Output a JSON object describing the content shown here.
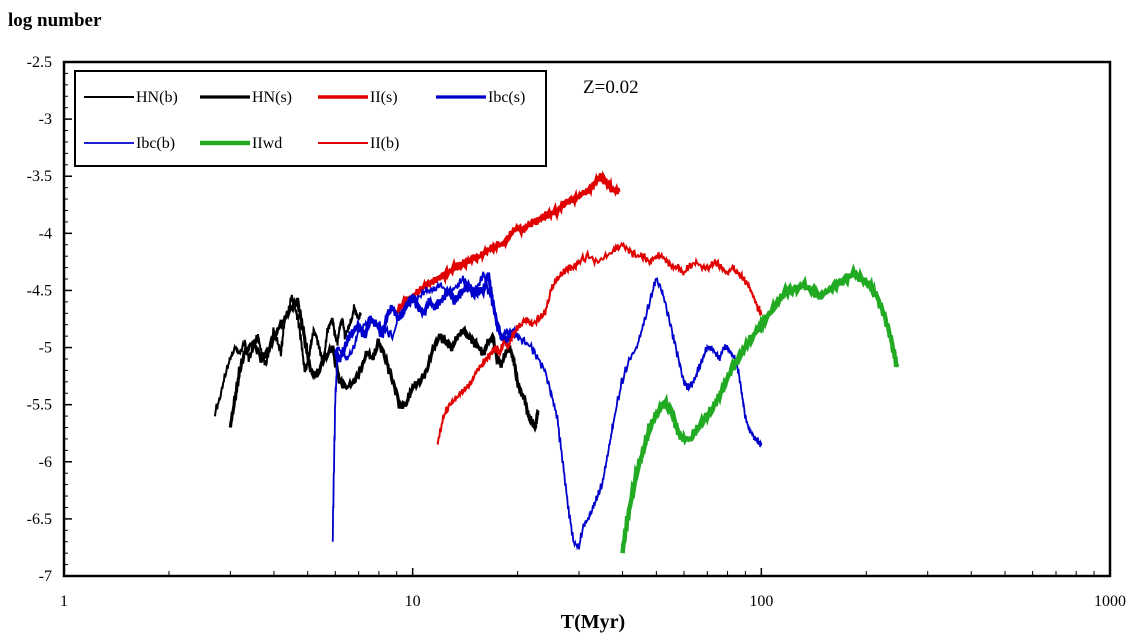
{
  "chart_data": {
    "type": "line",
    "ylabel": "log number",
    "xlabel": "T(Myr)",
    "xscale": "log",
    "xlim": [
      1,
      1000
    ],
    "ylim": [
      -7,
      -2.5
    ],
    "x_ticks": [
      1,
      10,
      100,
      1000
    ],
    "x_tick_labels": [
      "1",
      "10",
      "100",
      "1000"
    ],
    "y_ticks": [
      -2.5,
      -3,
      -3.5,
      -4,
      -4.5,
      -5,
      -5.5,
      -6,
      -6.5,
      -7
    ],
    "y_tick_labels": [
      "-2.5",
      "-3",
      "-3.5",
      "-4",
      "-4.5",
      "-5",
      "-5.5",
      "-6",
      "-6.5",
      "-7"
    ],
    "annotation": "Z=0.02",
    "legend_position": "top-left",
    "grid": false,
    "series": [
      {
        "name": "HN(b)",
        "color": "#000000",
        "width": 2,
        "x": [
          2.7,
          2.8,
          2.9,
          3.0,
          3.1,
          3.2,
          3.3,
          3.4,
          3.5,
          3.6,
          3.7,
          3.8,
          3.9,
          4.0,
          4.1,
          4.2,
          4.3,
          4.4,
          4.5,
          4.6,
          4.7,
          4.8,
          4.9,
          5.0,
          5.1,
          5.2,
          5.3,
          5.4,
          5.5,
          5.6,
          5.7,
          5.8,
          5.9,
          6.0,
          6.1,
          6.2,
          6.3,
          6.4,
          6.5,
          6.6,
          6.7,
          6.8,
          6.9,
          7.0,
          7.1
        ],
        "y": [
          -5.6,
          -5.45,
          -5.25,
          -5.1,
          -5.0,
          -5.05,
          -4.95,
          -5.1,
          -5.0,
          -4.9,
          -5.05,
          -5.15,
          -5.0,
          -4.85,
          -4.95,
          -5.05,
          -4.75,
          -4.7,
          -4.55,
          -4.65,
          -4.75,
          -4.95,
          -5.2,
          -5.15,
          -5.0,
          -4.85,
          -4.9,
          -5.0,
          -5.1,
          -5.05,
          -4.85,
          -4.8,
          -4.75,
          -4.9,
          -4.95,
          -4.8,
          -4.75,
          -4.9,
          -4.85,
          -4.8,
          -4.75,
          -4.65,
          -4.7,
          -4.75,
          -4.7
        ]
      },
      {
        "name": "HN(s)",
        "color": "#000000",
        "width": 3.2,
        "x": [
          3.0,
          3.1,
          3.2,
          3.3,
          3.5,
          3.7,
          3.9,
          4.1,
          4.3,
          4.5,
          4.7,
          4.9,
          5.1,
          5.3,
          5.6,
          5.9,
          6.2,
          6.5,
          6.8,
          7.1,
          7.4,
          7.7,
          8.0,
          8.4,
          8.8,
          9.2,
          9.6,
          10.0,
          10.5,
          11.0,
          11.5,
          12.0,
          12.5,
          13.0,
          13.5,
          14.0,
          14.5,
          15.0,
          15.5,
          16.0,
          16.5,
          17.0,
          17.5,
          18.0,
          18.5,
          19.0,
          19.5,
          20.0,
          20.5,
          21.0,
          21.5,
          22.0,
          22.5,
          22.9
        ],
        "y": [
          -5.7,
          -5.45,
          -5.2,
          -5.05,
          -4.95,
          -5.1,
          -5.0,
          -4.85,
          -4.75,
          -4.65,
          -4.6,
          -4.9,
          -5.2,
          -5.25,
          -5.1,
          -5.0,
          -5.3,
          -5.35,
          -5.3,
          -5.2,
          -5.05,
          -5.1,
          -4.95,
          -5.1,
          -5.3,
          -5.5,
          -5.5,
          -5.35,
          -5.3,
          -5.2,
          -5.0,
          -4.9,
          -4.95,
          -5.0,
          -4.9,
          -4.85,
          -4.9,
          -4.95,
          -5.0,
          -5.05,
          -4.95,
          -4.9,
          -5.1,
          -5.15,
          -5.05,
          -5.0,
          -5.1,
          -5.3,
          -5.4,
          -5.45,
          -5.6,
          -5.65,
          -5.7,
          -5.55
        ]
      },
      {
        "name": "II(s)",
        "color": "#e00000",
        "width": 3.5,
        "x": [
          9.0,
          9.5,
          10.0,
          10.5,
          11.0,
          11.5,
          12.0,
          12.6,
          13.2,
          13.8,
          14.4,
          15.0,
          15.7,
          16.4,
          17.1,
          17.8,
          18.5,
          19.2,
          20.0,
          20.8,
          21.6,
          22.4,
          23.2,
          24.0,
          25.0,
          26.0,
          27.0,
          28.0,
          29.0,
          30.0,
          31.0,
          32.0,
          33.0,
          34.0,
          35.0,
          36.0,
          37.0,
          38.0,
          39.0
        ],
        "y": [
          -4.7,
          -4.6,
          -4.55,
          -4.5,
          -4.45,
          -4.42,
          -4.38,
          -4.35,
          -4.3,
          -4.28,
          -4.25,
          -4.22,
          -4.2,
          -4.15,
          -4.12,
          -4.1,
          -4.08,
          -4.0,
          -3.95,
          -3.98,
          -3.92,
          -3.9,
          -3.88,
          -3.85,
          -3.82,
          -3.8,
          -3.75,
          -3.72,
          -3.7,
          -3.68,
          -3.65,
          -3.62,
          -3.58,
          -3.52,
          -3.5,
          -3.55,
          -3.6,
          -3.62,
          -3.63
        ]
      },
      {
        "name": "Ibc(s)",
        "color": "#0000cc",
        "width": 3.2,
        "x": [
          6.0,
          6.2,
          6.4,
          6.6,
          6.8,
          7.0,
          7.3,
          7.6,
          7.9,
          8.2,
          8.5,
          8.8,
          9.1,
          9.4,
          9.7,
          10.0,
          10.4,
          10.8,
          11.2,
          11.6,
          12.0,
          12.4,
          12.8,
          13.2,
          13.6,
          14.0,
          14.5,
          15.0,
          15.5,
          16.0,
          16.5,
          17.0,
          17.5,
          18.0,
          18.5,
          19.0,
          19.5,
          20.0
        ],
        "y": [
          -5.05,
          -5.1,
          -5.0,
          -4.9,
          -4.85,
          -4.8,
          -4.9,
          -4.75,
          -4.8,
          -4.9,
          -4.7,
          -4.65,
          -4.75,
          -4.7,
          -4.6,
          -4.55,
          -4.65,
          -4.7,
          -4.6,
          -4.65,
          -4.6,
          -4.55,
          -4.5,
          -4.6,
          -4.55,
          -4.5,
          -4.45,
          -4.55,
          -4.5,
          -4.5,
          -4.35,
          -4.6,
          -4.8,
          -4.9,
          -4.95,
          -4.9,
          -4.85,
          -4.9
        ]
      },
      {
        "name": "Ibc(b)",
        "color": "#0000cc",
        "width": 1.8,
        "x": [
          5.9,
          6.0,
          6.1,
          6.3,
          6.5,
          6.8,
          7.0,
          7.3,
          7.6,
          8.0,
          8.4,
          8.8,
          9.2,
          9.6,
          10.0,
          10.5,
          11.0,
          11.5,
          12.0,
          12.5,
          13.0,
          13.5,
          14.0,
          14.5,
          15.0,
          15.5,
          16.0,
          16.5,
          17.0,
          17.5,
          18.0,
          19.0,
          20.0,
          21.0,
          22.0,
          23.0,
          24.0,
          25.0,
          26.0,
          27.0,
          28.0,
          29.0,
          30.0,
          31.0,
          32.0,
          33.0,
          34.0,
          35.0,
          36.0,
          37.0,
          38.0,
          40.0,
          42.0,
          44.0,
          46.0,
          48.0,
          50.0,
          52.0,
          54.0,
          56.0,
          58.0,
          60.0,
          62.0,
          64.0,
          66.0,
          68.0,
          70.0,
          72.0,
          74.0,
          76.0,
          78.0,
          80.0,
          82.0,
          84.0,
          86.0,
          88.0,
          90.0,
          92.0,
          94.0,
          96.0,
          98.0,
          100.0
        ],
        "y": [
          -6.7,
          -5.5,
          -5.0,
          -5.05,
          -5.1,
          -5.0,
          -4.85,
          -4.8,
          -4.75,
          -4.8,
          -4.85,
          -4.9,
          -4.7,
          -4.65,
          -4.6,
          -4.55,
          -4.5,
          -4.5,
          -4.45,
          -4.5,
          -4.5,
          -4.45,
          -4.4,
          -4.45,
          -4.5,
          -4.45,
          -4.35,
          -4.5,
          -4.6,
          -4.8,
          -4.9,
          -4.85,
          -4.9,
          -4.95,
          -5.0,
          -5.1,
          -5.2,
          -5.4,
          -5.6,
          -6.0,
          -6.4,
          -6.7,
          -6.75,
          -6.55,
          -6.5,
          -6.4,
          -6.3,
          -6.2,
          -6.0,
          -5.8,
          -5.6,
          -5.3,
          -5.1,
          -5.0,
          -4.8,
          -4.6,
          -4.4,
          -4.5,
          -4.7,
          -4.9,
          -5.1,
          -5.3,
          -5.35,
          -5.3,
          -5.2,
          -5.1,
          -5.0,
          -5.0,
          -5.05,
          -5.1,
          -5.0,
          -5.0,
          -5.05,
          -5.1,
          -5.2,
          -5.4,
          -5.6,
          -5.7,
          -5.75,
          -5.8,
          -5.82,
          -5.85
        ]
      },
      {
        "name": "IIwd",
        "color": "#22aa22",
        "width": 4.5,
        "x": [
          40.0,
          42.0,
          44.0,
          46.0,
          48.0,
          50.0,
          52.0,
          54.0,
          56.0,
          58.0,
          60.0,
          63.0,
          66.0,
          70.0,
          74.0,
          78.0,
          82.0,
          86.0,
          90.0,
          95.0,
          100.0,
          106.0,
          112.0,
          118.0,
          125.0,
          132.0,
          140.0,
          148.0,
          156.0,
          165.0,
          175.0,
          185.0,
          195.0,
          205.0,
          215.0,
          225.0,
          235.0,
          245.0
        ],
        "y": [
          -6.8,
          -6.4,
          -6.1,
          -5.9,
          -5.7,
          -5.6,
          -5.5,
          -5.5,
          -5.6,
          -5.75,
          -5.8,
          -5.8,
          -5.7,
          -5.6,
          -5.5,
          -5.35,
          -5.2,
          -5.1,
          -5.0,
          -4.9,
          -4.8,
          -4.7,
          -4.6,
          -4.5,
          -4.5,
          -4.45,
          -4.5,
          -4.55,
          -4.5,
          -4.45,
          -4.4,
          -4.35,
          -4.4,
          -4.45,
          -4.55,
          -4.7,
          -4.9,
          -5.15
        ]
      },
      {
        "name": "II(b)",
        "color": "#e00000",
        "width": 2,
        "x": [
          11.8,
          12.3,
          12.8,
          13.3,
          13.8,
          14.3,
          14.8,
          15.3,
          15.8,
          16.3,
          16.8,
          17.3,
          17.8,
          18.3,
          18.8,
          19.3,
          19.8,
          20.5,
          21.2,
          22.0,
          23.0,
          24.0,
          25.0,
          26.0,
          27.0,
          28.0,
          29.0,
          30.0,
          32.0,
          34.0,
          36.0,
          38.0,
          40.0,
          42.0,
          44.0,
          46.0,
          48.0,
          50.0,
          52.0,
          54.0,
          56.0,
          58.0,
          60.0,
          62.0,
          65.0,
          68.0,
          71.0,
          74.0,
          77.0,
          80.0,
          83.0,
          86.0,
          89.0,
          92.0,
          95.0,
          98.0,
          100.0
        ],
        "y": [
          -5.85,
          -5.6,
          -5.5,
          -5.45,
          -5.4,
          -5.35,
          -5.3,
          -5.2,
          -5.15,
          -5.1,
          -5.05,
          -5.0,
          -5.05,
          -4.95,
          -5.0,
          -4.9,
          -4.85,
          -4.8,
          -4.75,
          -4.8,
          -4.75,
          -4.7,
          -4.5,
          -4.4,
          -4.35,
          -4.3,
          -4.3,
          -4.25,
          -4.2,
          -4.25,
          -4.2,
          -4.15,
          -4.1,
          -4.15,
          -4.2,
          -4.2,
          -4.25,
          -4.2,
          -4.2,
          -4.25,
          -4.3,
          -4.3,
          -4.35,
          -4.3,
          -4.25,
          -4.3,
          -4.3,
          -4.25,
          -4.3,
          -4.35,
          -4.3,
          -4.35,
          -4.4,
          -4.45,
          -4.55,
          -4.65,
          -4.7
        ]
      }
    ],
    "legend_rows": [
      [
        "HN(b)",
        "HN(s)",
        "II(s)",
        "Ibc(s)"
      ],
      [
        "Ibc(b)",
        "IIwd",
        "II(b)"
      ]
    ]
  }
}
